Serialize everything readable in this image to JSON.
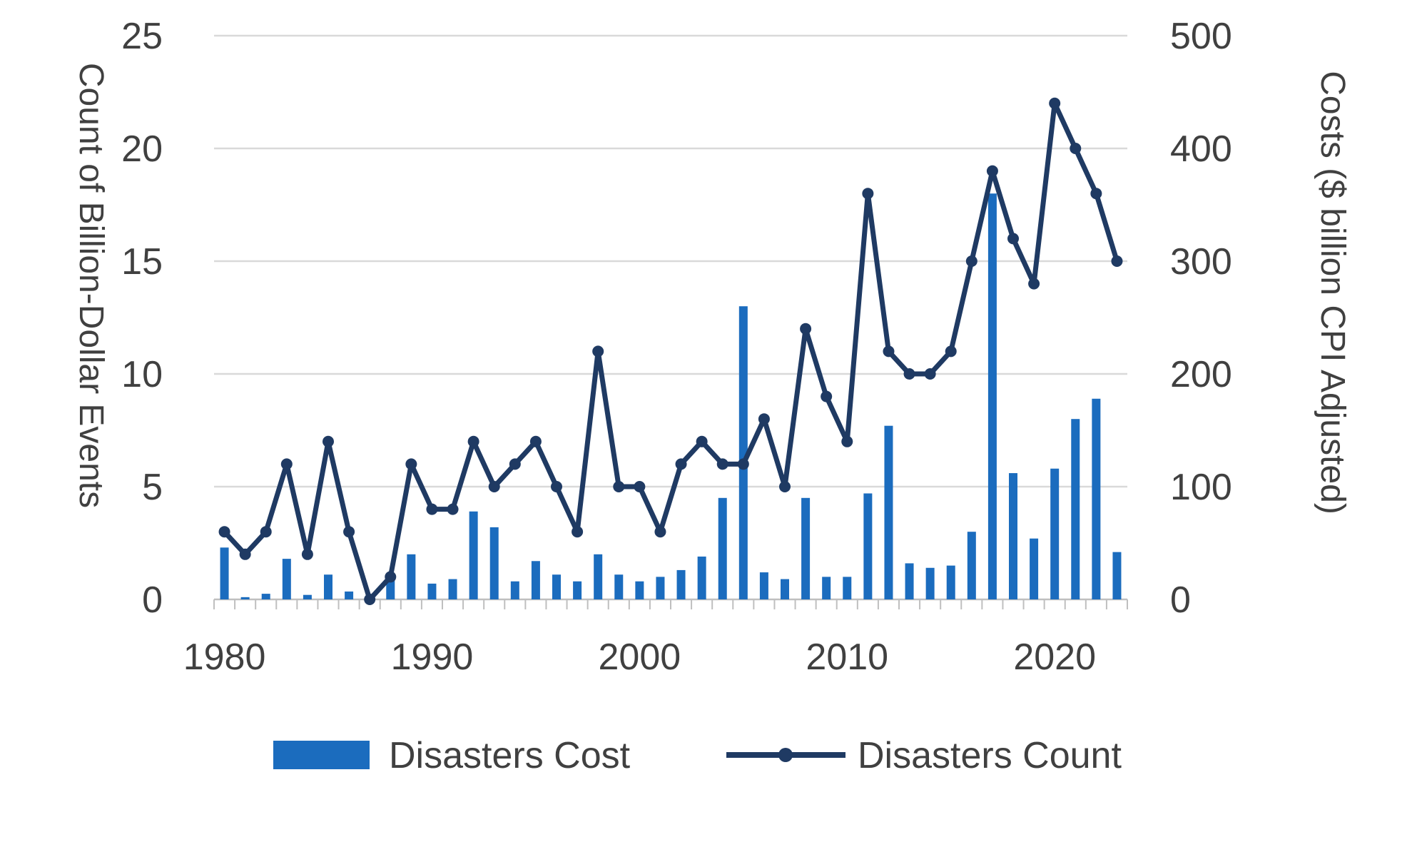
{
  "chart_data": {
    "type": "combo",
    "title": "",
    "categories": [
      1980,
      1981,
      1982,
      1983,
      1984,
      1985,
      1986,
      1987,
      1988,
      1989,
      1990,
      1991,
      1992,
      1993,
      1994,
      1995,
      1996,
      1997,
      1998,
      1999,
      2000,
      2001,
      2002,
      2003,
      2004,
      2005,
      2006,
      2007,
      2008,
      2009,
      2010,
      2011,
      2012,
      2013,
      2014,
      2015,
      2016,
      2017,
      2018,
      2019,
      2020,
      2021,
      2022,
      2023
    ],
    "series": [
      {
        "name": "Disasters Cost",
        "type": "bar",
        "axis": "right",
        "color": "#1b6cbe",
        "values": [
          46,
          2,
          5,
          36,
          4,
          22,
          7,
          2,
          22,
          40,
          14,
          18,
          78,
          64,
          16,
          34,
          22,
          16,
          40,
          22,
          16,
          20,
          26,
          38,
          90,
          260,
          24,
          18,
          90,
          20,
          20,
          94,
          154,
          32,
          28,
          30,
          60,
          360,
          112,
          54,
          116,
          160,
          178,
          42
        ]
      },
      {
        "name": "Disasters Count",
        "type": "line",
        "axis": "left",
        "color": "#1f3a63",
        "values": [
          3,
          2,
          3,
          6,
          2,
          7,
          3,
          0,
          1,
          6,
          4,
          4,
          7,
          5,
          6,
          7,
          5,
          3,
          11,
          5,
          5,
          3,
          6,
          7,
          6,
          6,
          8,
          5,
          12,
          9,
          7,
          18,
          11,
          10,
          10,
          11,
          15,
          19,
          16,
          14,
          22,
          20,
          18,
          15
        ]
      }
    ],
    "left_axis": {
      "label": "Count of Billion-Dollar Events",
      "min": 0,
      "max": 25,
      "ticks": [
        0,
        5,
        10,
        15,
        20,
        25
      ]
    },
    "right_axis": {
      "label": "Costs ($ billion CPI Adjusted)",
      "min": 0,
      "max": 500,
      "ticks": [
        0,
        100,
        200,
        300,
        400,
        500
      ]
    },
    "x_axis": {
      "labeled_ticks": [
        "1980",
        "1990",
        "2000",
        "2010",
        "2020"
      ]
    },
    "legend": {
      "position": "bottom",
      "entries": [
        "Disasters Cost",
        "Disasters Count"
      ]
    },
    "grid": "horizontal",
    "styles": {
      "grid_color": "#d9d9d9",
      "axis_color": "#bfbfbf",
      "text_color": "#404040",
      "background": "#ffffff"
    }
  }
}
